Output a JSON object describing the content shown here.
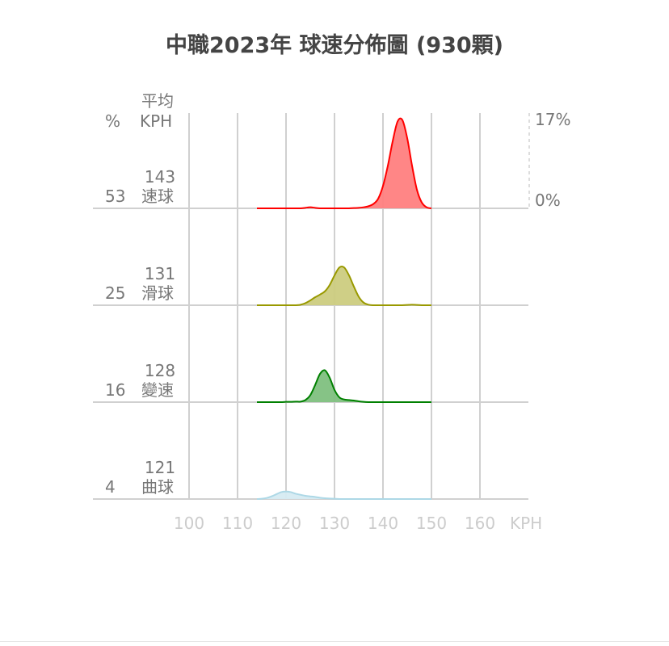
{
  "chart_data": {
    "type": "area",
    "subtype": "ridgeline",
    "title": "中職2023年 球速分佈圖 (930顆)",
    "xlabel": "KPH",
    "xlim": [
      100,
      170
    ],
    "x_ticks": [
      "100",
      "110",
      "120",
      "130",
      "140",
      "150",
      "160"
    ],
    "ylim": [
      0,
      17
    ],
    "y_scale_labels": {
      "max": "17%",
      "min": "0%"
    },
    "header": {
      "pct": "%",
      "avg_line1": "平均",
      "avg_line2": "KPH"
    },
    "grid": true,
    "x": [
      114,
      115,
      116,
      117,
      118,
      119,
      120,
      121,
      122,
      123,
      124,
      125,
      126,
      127,
      128,
      129,
      130,
      131,
      132,
      133,
      134,
      135,
      136,
      137,
      138,
      139,
      140,
      141,
      142,
      143,
      144,
      145,
      146,
      147,
      148,
      149,
      150
    ],
    "series": [
      {
        "name": "速球",
        "share": "53",
        "avg": "143",
        "color": "#ff0000",
        "fill": "#ff8080",
        "values": [
          0,
          0,
          0,
          0,
          0,
          0,
          0,
          0,
          0,
          0,
          0.1,
          0.2,
          0.1,
          0,
          0,
          0,
          0,
          0,
          0,
          0,
          0.05,
          0.1,
          0.2,
          0.4,
          0.8,
          1.8,
          4.2,
          8.0,
          12.6,
          16.3,
          16.6,
          13.2,
          8.0,
          3.5,
          1.1,
          0.2,
          0
        ]
      },
      {
        "name": "滑球",
        "share": "25",
        "avg": "131",
        "color": "#999900",
        "fill": "#cccc80",
        "values": [
          0,
          0,
          0,
          0,
          0,
          0,
          0,
          0,
          0,
          0.1,
          0.4,
          0.9,
          1.5,
          2.0,
          2.6,
          3.8,
          5.6,
          7.1,
          7.1,
          5.6,
          3.5,
          1.6,
          0.5,
          0.1,
          0,
          0,
          0,
          0,
          0,
          0,
          0,
          0.05,
          0.1,
          0.05,
          0,
          0,
          0
        ]
      },
      {
        "name": "變速",
        "share": "16",
        "avg": "128",
        "color": "#008000",
        "fill": "#80c080",
        "values": [
          0,
          0,
          0,
          0,
          0,
          0,
          0.05,
          0.05,
          0.1,
          0.1,
          0.4,
          1.3,
          3.2,
          5.3,
          6.0,
          4.6,
          2.3,
          0.9,
          0.5,
          0.4,
          0.3,
          0.15,
          0.05,
          0,
          0,
          0,
          0,
          0,
          0,
          0,
          0,
          0,
          0,
          0,
          0,
          0,
          0
        ]
      },
      {
        "name": "曲球",
        "share": "4",
        "avg": "121",
        "color": "#add8e6",
        "fill": "#d6ebf2",
        "values": [
          0,
          0.05,
          0.2,
          0.5,
          0.9,
          1.3,
          1.4,
          1.3,
          1.0,
          0.8,
          0.6,
          0.5,
          0.4,
          0.25,
          0.15,
          0.1,
          0.05,
          0,
          0,
          0,
          0,
          0,
          0,
          0,
          0,
          0,
          0,
          0,
          0,
          0,
          0,
          0,
          0,
          0,
          0,
          0,
          0
        ]
      }
    ]
  }
}
